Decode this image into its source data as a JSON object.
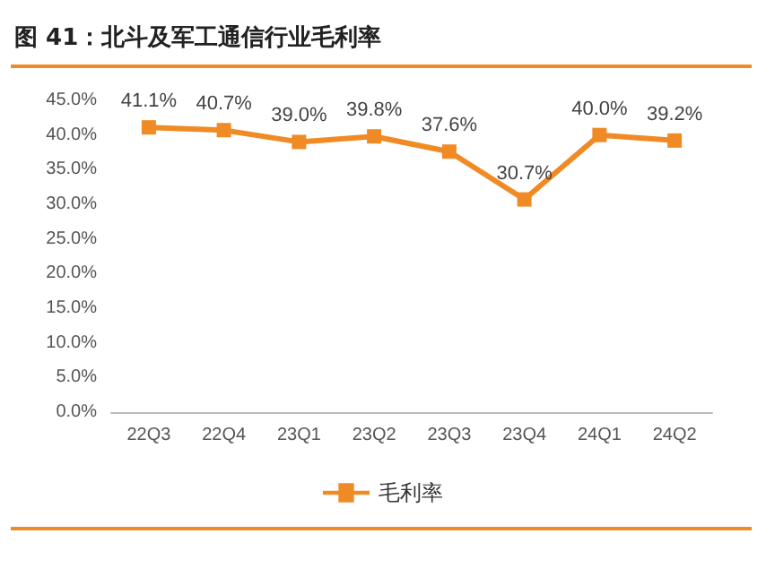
{
  "chart_data": {
    "type": "line",
    "title": "图 41：北斗及军工通信行业毛利率",
    "categories": [
      "22Q3",
      "22Q4",
      "23Q1",
      "23Q2",
      "23Q3",
      "23Q4",
      "24Q1",
      "24Q2"
    ],
    "series": [
      {
        "name": "毛利率",
        "color": "#f08a24",
        "values": [
          41.1,
          40.7,
          39.0,
          39.8,
          37.6,
          30.7,
          40.0,
          39.2
        ],
        "value_labels": [
          "41.1%",
          "40.7%",
          "39.0%",
          "39.8%",
          "37.6%",
          "30.7%",
          "40.0%",
          "39.2%"
        ]
      }
    ],
    "ylim": [
      0,
      45
    ],
    "yticks": [
      {
        "value": 0,
        "label": "0.0%"
      },
      {
        "value": 5,
        "label": "5.0%"
      },
      {
        "value": 10,
        "label": "10.0%"
      },
      {
        "value": 15,
        "label": "15.0%"
      },
      {
        "value": 20,
        "label": "20.0%"
      },
      {
        "value": 25,
        "label": "25.0%"
      },
      {
        "value": 30,
        "label": "30.0%"
      },
      {
        "value": 35,
        "label": "35.0%"
      },
      {
        "value": 40,
        "label": "40.0%"
      },
      {
        "value": 45,
        "label": "45.0%"
      }
    ],
    "grid": false,
    "legend": "bottom",
    "marker": "square",
    "line_style": "solid"
  }
}
